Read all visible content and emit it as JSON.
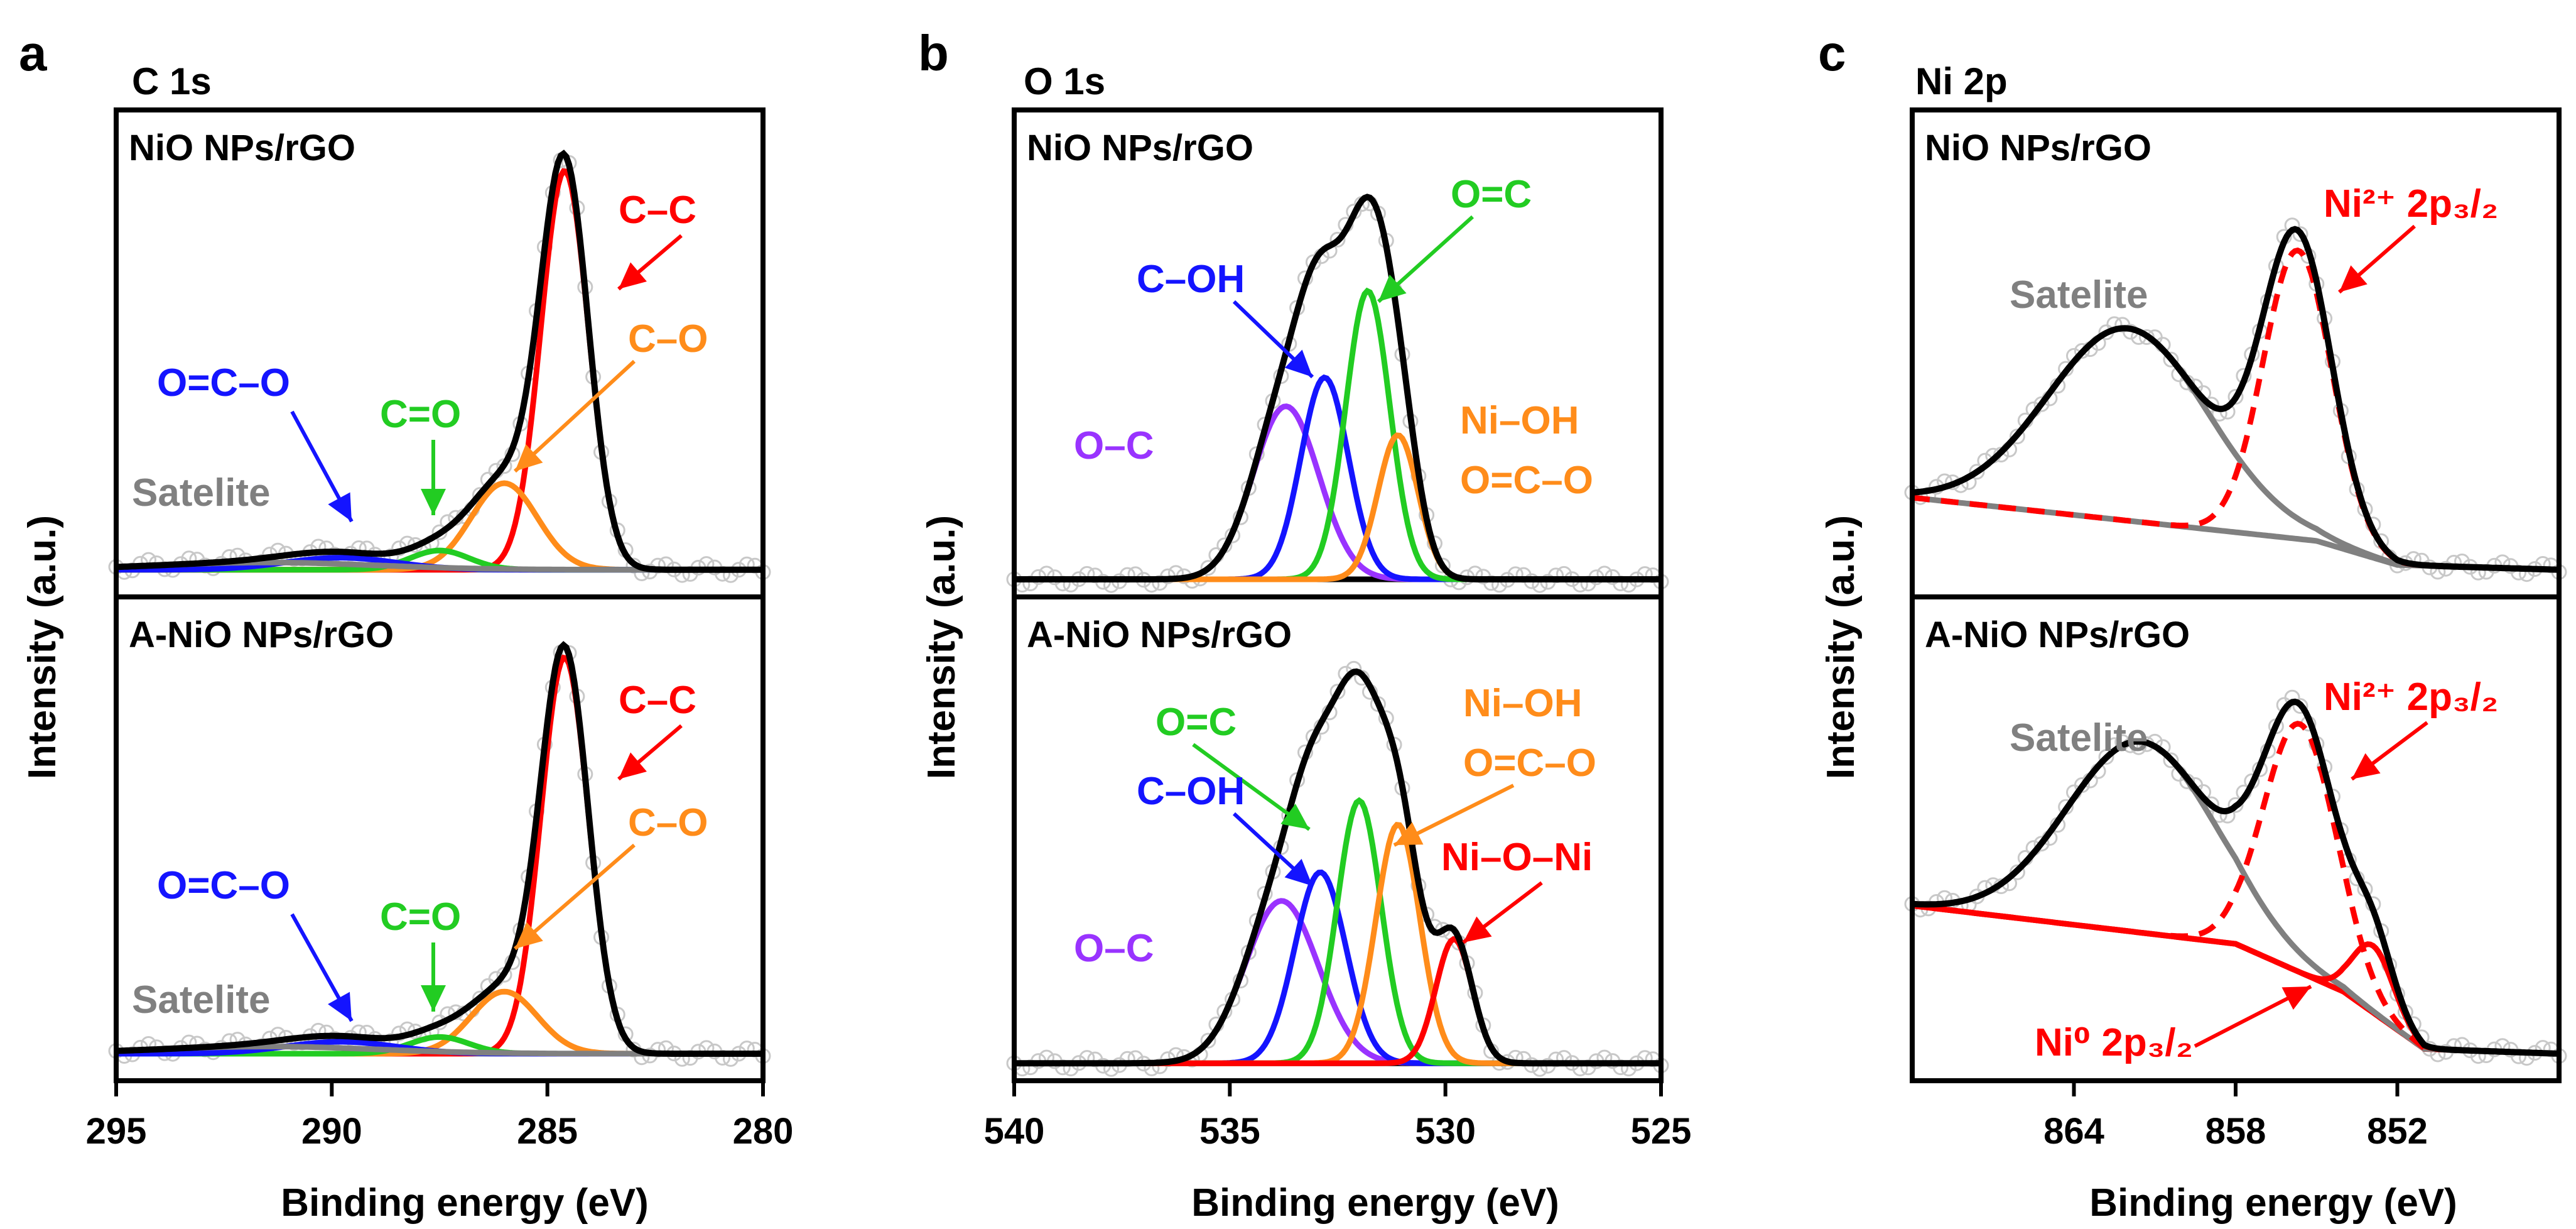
{
  "colors": {
    "red": "#ff0000",
    "orange": "#ff8c1a",
    "green": "#22cc22",
    "blue": "#1414ff",
    "purple": "#9933ff",
    "gray": "#808080",
    "black": "#000000",
    "exp": "#c8c8c8"
  },
  "panels": [
    {
      "letter": "a",
      "title": "C 1s",
      "ylabel": "Intensity (a.u.)",
      "xlabel": "Binding energy (eV)",
      "xlim": [
        295,
        280
      ],
      "xticks": [
        295,
        290,
        285,
        280
      ],
      "subplots": [
        {
          "label": "NiO NPs/rGO",
          "annotations": [
            {
              "text": "C–C",
              "color": "red"
            },
            {
              "text": "C–O",
              "color": "orange"
            },
            {
              "text": "O=C–O",
              "color": "blue"
            },
            {
              "text": "C=O",
              "color": "green"
            },
            {
              "text": "Satelite",
              "color": "gray"
            }
          ]
        },
        {
          "label": "A-NiO NPs/rGO",
          "annotations": [
            {
              "text": "C–C",
              "color": "red"
            },
            {
              "text": "C–O",
              "color": "orange"
            },
            {
              "text": "O=C–O",
              "color": "blue"
            },
            {
              "text": "C=O",
              "color": "green"
            },
            {
              "text": "Satelite",
              "color": "gray"
            }
          ]
        }
      ]
    },
    {
      "letter": "b",
      "title": "O 1s",
      "ylabel": "Intensity (a.u.)",
      "xlabel": "Binding energy (eV)",
      "xlim": [
        540,
        525
      ],
      "xticks": [
        540,
        535,
        530,
        525
      ],
      "subplots": [
        {
          "label": "NiO NPs/rGO",
          "annotations": [
            {
              "text": "O=C",
              "color": "green"
            },
            {
              "text": "C–OH",
              "color": "blue"
            },
            {
              "text": "O–C",
              "color": "purple"
            },
            {
              "text": "Ni–OH",
              "color": "orange"
            },
            {
              "text": "O=C–O",
              "color": "orange"
            }
          ]
        },
        {
          "label": "A-NiO NPs/rGO",
          "annotations": [
            {
              "text": "O=C",
              "color": "green"
            },
            {
              "text": "C–OH",
              "color": "blue"
            },
            {
              "text": "O–C",
              "color": "purple"
            },
            {
              "text": "Ni–OH",
              "color": "orange"
            },
            {
              "text": "O=C–O",
              "color": "orange"
            },
            {
              "text": "Ni–O–Ni",
              "color": "red"
            }
          ]
        }
      ]
    },
    {
      "letter": "c",
      "title": "Ni 2p",
      "ylabel": "Intensity (a.u.)",
      "xlabel": "Binding energy (eV)",
      "xlim": [
        870,
        846
      ],
      "xticks": [
        864,
        858,
        852
      ],
      "subplots": [
        {
          "label": "NiO NPs/rGO",
          "annotations": [
            {
              "text": "Satelite",
              "color": "gray"
            },
            {
              "text": "Ni²⁺ 2p₃/₂",
              "color": "red"
            }
          ]
        },
        {
          "label": "A-NiO NPs/rGO",
          "annotations": [
            {
              "text": "Satelite",
              "color": "gray"
            },
            {
              "text": "Ni²⁺ 2p₃/₂",
              "color": "red"
            },
            {
              "text": "Ni⁰ 2p₃/₂",
              "color": "red"
            }
          ]
        }
      ]
    }
  ],
  "chart_data": [
    {
      "type": "line",
      "title": "C 1s",
      "xlabel": "Binding energy (eV)",
      "ylabel": "Intensity (a.u.)",
      "xlim": [
        295,
        280
      ],
      "subplots": [
        {
          "label": "NiO NPs/rGO",
          "baseline": 0.05,
          "peaks": [
            {
              "name": "C–C",
              "color": "red",
              "center": 284.6,
              "height": 0.83,
              "fwhm": 1.3
            },
            {
              "name": "C–O",
              "color": "orange",
              "center": 286.0,
              "height": 0.18,
              "fwhm": 1.8
            },
            {
              "name": "C=O",
              "color": "green",
              "center": 287.5,
              "height": 0.04,
              "fwhm": 1.6
            },
            {
              "name": "O=C–O",
              "color": "blue",
              "center": 289.8,
              "height": 0.025,
              "fwhm": 3.0
            },
            {
              "name": "Satelite",
              "color": "gray",
              "center": 291.5,
              "height": 0.015,
              "fwhm": 6.0
            }
          ]
        },
        {
          "label": "A-NiO NPs/rGO",
          "baseline": 0.05,
          "peaks": [
            {
              "name": "C–C",
              "color": "red",
              "center": 284.6,
              "height": 0.83,
              "fwhm": 1.3
            },
            {
              "name": "C–O",
              "color": "orange",
              "center": 286.0,
              "height": 0.13,
              "fwhm": 1.8
            },
            {
              "name": "C=O",
              "color": "green",
              "center": 287.5,
              "height": 0.035,
              "fwhm": 1.6
            },
            {
              "name": "O=C–O",
              "color": "blue",
              "center": 289.8,
              "height": 0.025,
              "fwhm": 3.0
            },
            {
              "name": "Satelite",
              "color": "gray",
              "center": 291.5,
              "height": 0.015,
              "fwhm": 6.0
            }
          ]
        }
      ]
    },
    {
      "type": "line",
      "title": "O 1s",
      "xlabel": "Binding energy (eV)",
      "ylabel": "Intensity (a.u.)",
      "xlim": [
        540,
        525
      ],
      "subplots": [
        {
          "label": "NiO NPs/rGO",
          "baseline": 0.03,
          "peaks": [
            {
              "name": "O–C",
              "color": "purple",
              "center": 533.7,
              "height": 0.36,
              "fwhm": 1.8
            },
            {
              "name": "C–OH",
              "color": "blue",
              "center": 532.8,
              "height": 0.42,
              "fwhm": 1.3
            },
            {
              "name": "O=C",
              "color": "green",
              "center": 531.8,
              "height": 0.6,
              "fwhm": 1.2
            },
            {
              "name": "Ni–OH / O=C–O",
              "color": "orange",
              "center": 531.1,
              "height": 0.3,
              "fwhm": 1.1
            }
          ]
        },
        {
          "label": "A-NiO NPs/rGO",
          "baseline": 0.03,
          "peaks": [
            {
              "name": "O–C",
              "color": "purple",
              "center": 533.8,
              "height": 0.34,
              "fwhm": 2.0
            },
            {
              "name": "C–OH",
              "color": "blue",
              "center": 532.9,
              "height": 0.4,
              "fwhm": 1.4
            },
            {
              "name": "O=C",
              "color": "green",
              "center": 532.0,
              "height": 0.55,
              "fwhm": 1.2
            },
            {
              "name": "Ni–OH / O=C–O",
              "color": "orange",
              "center": 531.1,
              "height": 0.5,
              "fwhm": 1.2
            },
            {
              "name": "Ni–O–Ni",
              "color": "red",
              "center": 529.8,
              "height": 0.26,
              "fwhm": 1.0
            }
          ]
        }
      ]
    },
    {
      "type": "line",
      "title": "Ni 2p",
      "xlabel": "Binding energy (eV)",
      "ylabel": "Intensity (a.u.)",
      "xlim": [
        870,
        846
      ],
      "subplots": [
        {
          "label": "NiO NPs/rGO",
          "background": [
            {
              "x": 870,
              "y": 0.2
            },
            {
              "x": 855,
              "y": 0.11
            },
            {
              "x": 852,
              "y": 0.06
            },
            {
              "x": 846,
              "y": 0.05
            }
          ],
          "peaks": [
            {
              "name": "Satelite",
              "color": "gray",
              "center": 862.0,
              "height": 0.4,
              "fwhm": 7.0
            },
            {
              "name": "Ni²⁺ 2p3/2",
              "color": "red",
              "center": 855.7,
              "height": 0.6,
              "fwhm": 3.0
            }
          ]
        },
        {
          "label": "A-NiO NPs/rGO",
          "background": [
            {
              "x": 870,
              "y": 0.36
            },
            {
              "x": 858,
              "y": 0.28
            },
            {
              "x": 854,
              "y": 0.18
            },
            {
              "x": 851,
              "y": 0.06
            },
            {
              "x": 846,
              "y": 0.05
            }
          ],
          "peaks": [
            {
              "name": "Satelite",
              "color": "gray",
              "center": 861.5,
              "height": 0.4,
              "fwhm": 6.5
            },
            {
              "name": "Ni²⁺ 2p3/2",
              "color": "red",
              "center": 855.6,
              "height": 0.52,
              "fwhm": 3.2
            },
            {
              "name": "Ni⁰ 2p3/2",
              "color": "red",
              "center": 852.9,
              "height": 0.14,
              "fwhm": 1.8
            }
          ]
        }
      ]
    }
  ]
}
